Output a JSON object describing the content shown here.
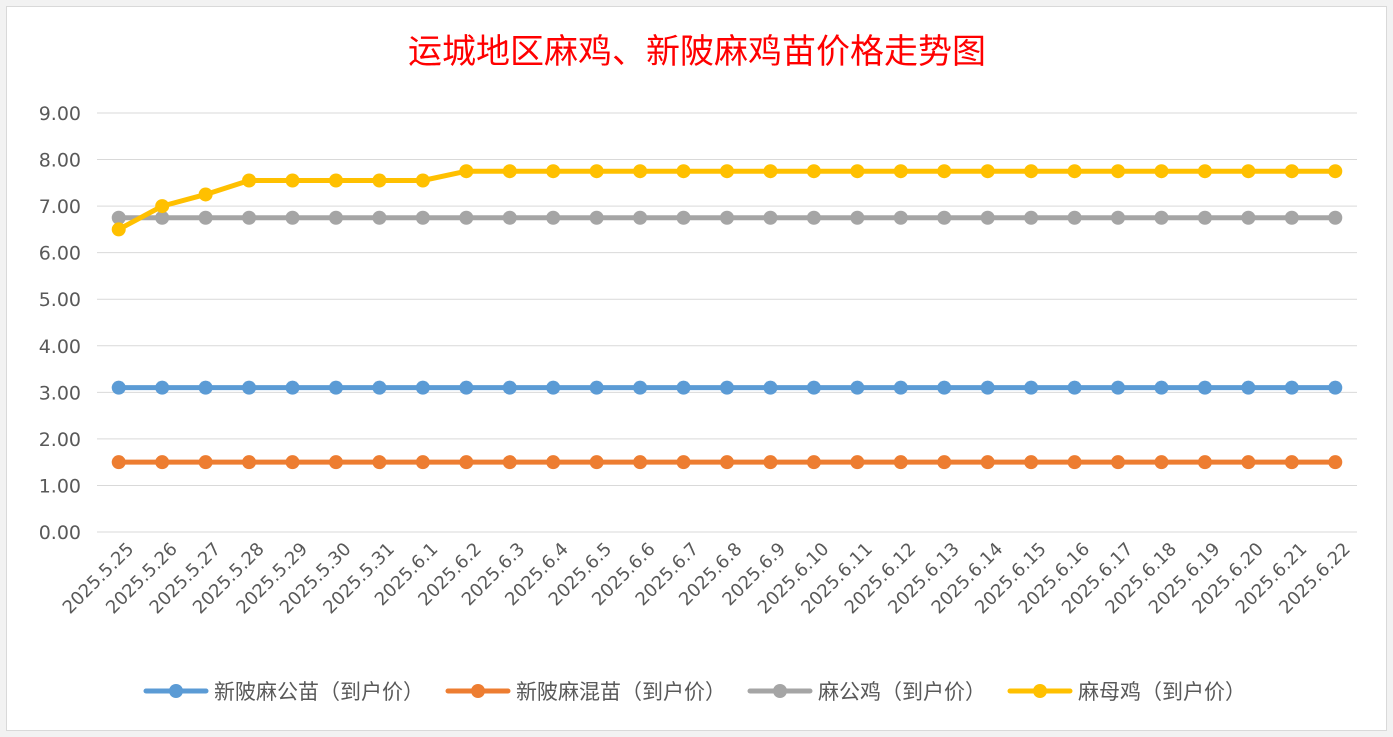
{
  "chart_data": {
    "type": "line",
    "title": "运城地区麻鸡、新陂麻鸡苗价格走势图",
    "xlabel": "",
    "ylabel": "",
    "ylim": [
      0,
      9
    ],
    "y_tick_step": 1,
    "y_tick_format_decimals": 2,
    "grid": true,
    "legend_position": "bottom",
    "categories": [
      "2025.5.25",
      "2025.5.26",
      "2025.5.27",
      "2025.5.28",
      "2025.5.29",
      "2025.5.30",
      "2025.5.31",
      "2025.6.1",
      "2025.6.2",
      "2025.6.3",
      "2025.6.4",
      "2025.6.5",
      "2025.6.6",
      "2025.6.7",
      "2025.6.8",
      "2025.6.9",
      "2025.6.10",
      "2025.6.11",
      "2025.6.12",
      "2025.6.13",
      "2025.6.14",
      "2025.6.15",
      "2025.6.16",
      "2025.6.17",
      "2025.6.18",
      "2025.6.19",
      "2025.6.20",
      "2025.6.21",
      "2025.6.22"
    ],
    "series": [
      {
        "name": "新陂麻公苗（到户价）",
        "color": "#5b9bd5",
        "values": [
          3.1,
          3.1,
          3.1,
          3.1,
          3.1,
          3.1,
          3.1,
          3.1,
          3.1,
          3.1,
          3.1,
          3.1,
          3.1,
          3.1,
          3.1,
          3.1,
          3.1,
          3.1,
          3.1,
          3.1,
          3.1,
          3.1,
          3.1,
          3.1,
          3.1,
          3.1,
          3.1,
          3.1,
          3.1
        ]
      },
      {
        "name": "新陂麻混苗（到户价）",
        "color": "#ed7d31",
        "values": [
          1.5,
          1.5,
          1.5,
          1.5,
          1.5,
          1.5,
          1.5,
          1.5,
          1.5,
          1.5,
          1.5,
          1.5,
          1.5,
          1.5,
          1.5,
          1.5,
          1.5,
          1.5,
          1.5,
          1.5,
          1.5,
          1.5,
          1.5,
          1.5,
          1.5,
          1.5,
          1.5,
          1.5,
          1.5
        ]
      },
      {
        "name": "麻公鸡（到户价）",
        "color": "#a5a5a5",
        "values": [
          6.75,
          6.75,
          6.75,
          6.75,
          6.75,
          6.75,
          6.75,
          6.75,
          6.75,
          6.75,
          6.75,
          6.75,
          6.75,
          6.75,
          6.75,
          6.75,
          6.75,
          6.75,
          6.75,
          6.75,
          6.75,
          6.75,
          6.75,
          6.75,
          6.75,
          6.75,
          6.75,
          6.75,
          6.75
        ]
      },
      {
        "name": "麻母鸡（到户价）",
        "color": "#ffc000",
        "values": [
          6.5,
          7.0,
          7.25,
          7.55,
          7.55,
          7.55,
          7.55,
          7.55,
          7.75,
          7.75,
          7.75,
          7.75,
          7.75,
          7.75,
          7.75,
          7.75,
          7.75,
          7.75,
          7.75,
          7.75,
          7.75,
          7.75,
          7.75,
          7.75,
          7.75,
          7.75,
          7.75,
          7.75,
          7.75
        ]
      }
    ]
  }
}
